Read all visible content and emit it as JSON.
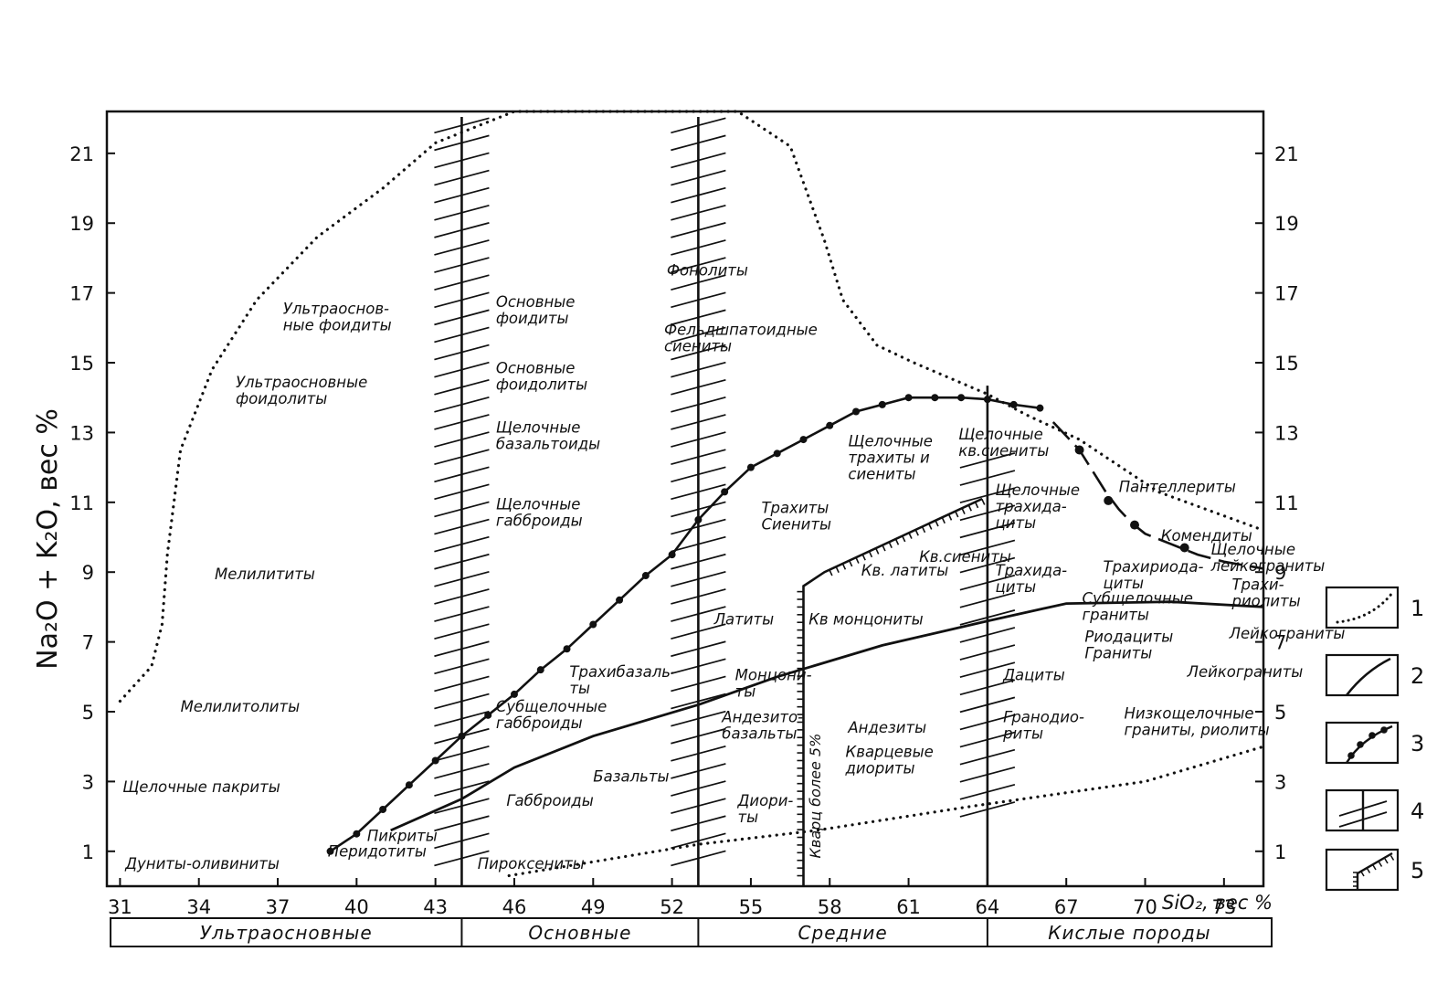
{
  "chart_data": {
    "type": "line",
    "title": "",
    "xlabel": "SiO₂, вес %",
    "ylabel": "Na₂O + K₂O, вес %",
    "xlim": [
      30.5,
      74.5
    ],
    "ylim": [
      0,
      22.2
    ],
    "x_ticks": [
      "31",
      "34",
      "37",
      "40",
      "43",
      "46",
      "49",
      "52",
      "55",
      "58",
      "61",
      "64",
      "67",
      "70",
      "73"
    ],
    "y_ticks_left": [
      "1",
      "3",
      "5",
      "7",
      "9",
      "11",
      "13",
      "15",
      "17",
      "19",
      "21"
    ],
    "y_ticks_right": [
      "1",
      "3",
      "5",
      "7",
      "9",
      "11",
      "13",
      "15",
      "17",
      "19",
      "21"
    ],
    "groups": [
      {
        "label": "Ультраосновные",
        "from": 30.5,
        "to": 44
      },
      {
        "label": "Основные",
        "from": 44,
        "to": 53
      },
      {
        "label": "Средние",
        "from": 53,
        "to": 64
      },
      {
        "label": "Кислые породы",
        "from": 64,
        "to": 74.5
      }
    ],
    "curves": {
      "dotted_upper": [
        [
          31,
          5.3
        ],
        [
          32.2,
          6.3
        ],
        [
          32.6,
          7.5
        ],
        [
          32.8,
          9.5
        ],
        [
          33.3,
          12.5
        ],
        [
          34.5,
          14.8
        ],
        [
          36.2,
          16.8
        ],
        [
          38.5,
          18.6
        ],
        [
          41,
          20
        ],
        [
          43,
          21.3
        ],
        [
          46,
          22.2
        ],
        [
          54.5,
          22.2
        ],
        [
          56.5,
          21.2
        ],
        [
          57.8,
          18.5
        ],
        [
          58.5,
          16.8
        ],
        [
          59.8,
          15.5
        ],
        [
          61.2,
          15
        ],
        [
          64,
          14.1
        ],
        [
          65.5,
          13.5
        ],
        [
          67.5,
          12.8
        ],
        [
          70.5,
          11.3
        ],
        [
          74.5,
          10.2
        ]
      ],
      "dotted_lower": [
        [
          45.8,
          0.3
        ],
        [
          49,
          0.7
        ],
        [
          53,
          1.2
        ],
        [
          57.5,
          1.6
        ],
        [
          63.5,
          2.3
        ],
        [
          70,
          3
        ],
        [
          74.5,
          4
        ]
      ],
      "alkaline_boundary_dotted": [
        [
          39,
          1
        ],
        [
          40,
          1.5
        ],
        [
          41,
          2.2
        ],
        [
          42,
          2.9
        ],
        [
          43,
          3.6
        ],
        [
          44,
          4.3
        ],
        [
          45,
          4.9
        ],
        [
          46,
          5.5
        ],
        [
          47,
          6.2
        ],
        [
          48,
          6.8
        ],
        [
          49,
          7.5
        ],
        [
          50,
          8.2
        ],
        [
          51,
          8.9
        ],
        [
          52,
          9.5
        ],
        [
          53,
          10.5
        ],
        [
          54,
          11.3
        ],
        [
          55,
          12
        ],
        [
          56,
          12.4
        ],
        [
          57,
          12.8
        ],
        [
          58,
          13.2
        ],
        [
          59,
          13.6
        ],
        [
          60,
          13.8
        ],
        [
          61,
          14
        ],
        [
          62,
          14
        ],
        [
          63,
          14
        ],
        [
          64,
          13.95
        ],
        [
          65,
          13.8
        ],
        [
          66,
          13.7
        ]
      ],
      "dashdot_tail": [
        [
          66.5,
          13.3
        ],
        [
          67.5,
          12.5
        ],
        [
          68.5,
          11.3
        ],
        [
          69,
          10.8
        ],
        [
          69.5,
          10.4
        ],
        [
          70,
          10.1
        ],
        [
          71,
          9.8
        ],
        [
          72,
          9.5
        ],
        [
          73,
          9.3
        ],
        [
          74.5,
          9.1
        ]
      ],
      "subalkaline_solid": [
        [
          41.3,
          1.6
        ],
        [
          44,
          2.5
        ],
        [
          46,
          3.4
        ],
        [
          49,
          4.3
        ],
        [
          53,
          5.2
        ],
        [
          56,
          6
        ],
        [
          60,
          6.9
        ],
        [
          64,
          7.6
        ],
        [
          67,
          8.1
        ],
        [
          71,
          8.15
        ],
        [
          74.5,
          8
        ]
      ],
      "quartz_5_line": [
        [
          57,
          0
        ],
        [
          57,
          8.6
        ],
        [
          57.8,
          9
        ],
        [
          63.8,
          11.1
        ]
      ],
      "hatched_verticals": [
        44,
        53,
        64
      ],
      "hatched_vertical_ranges": [
        [
          0,
          22.2
        ],
        [
          0,
          22.2
        ],
        [
          0,
          14.5
        ]
      ]
    },
    "fields": [
      {
        "lines": [
          "Ультраоснов-",
          "ные фоидиты"
        ],
        "x": 37.2,
        "y": 16.4
      },
      {
        "lines": [
          "Ультраосновные",
          "фоидолиты"
        ],
        "x": 35.4,
        "y": 14.3
      },
      {
        "lines": [
          "Мелилититы"
        ],
        "x": 34.6,
        "y": 8.8
      },
      {
        "lines": [
          "Мелилитолиты"
        ],
        "x": 33.3,
        "y": 5.0
      },
      {
        "lines": [
          "Щелочные пакриты"
        ],
        "x": 31.1,
        "y": 2.7
      },
      {
        "lines": [
          "Дуниты-оливиниты"
        ],
        "x": 31.2,
        "y": 0.5
      },
      {
        "lines": [
          "Пикриты"
        ],
        "x": 40.4,
        "y": 1.3
      },
      {
        "lines": [
          "Перидотиты"
        ],
        "x": 38.9,
        "y": 0.85
      },
      {
        "lines": [
          "Основные",
          "фоидиты"
        ],
        "x": 45.3,
        "y": 16.6
      },
      {
        "lines": [
          "Основные",
          "фоидолиты"
        ],
        "x": 45.3,
        "y": 14.7
      },
      {
        "lines": [
          "Щелочные",
          "базальтоиды"
        ],
        "x": 45.3,
        "y": 13.0
      },
      {
        "lines": [
          "Щелочные",
          "габброиды"
        ],
        "x": 45.3,
        "y": 10.8
      },
      {
        "lines": [
          "Трахибазаль-",
          "ты"
        ],
        "x": 48.1,
        "y": 6.0
      },
      {
        "lines": [
          "Субщелочные",
          "габброиды"
        ],
        "x": 45.3,
        "y": 5.0
      },
      {
        "lines": [
          "Базальты"
        ],
        "x": 49,
        "y": 3.0
      },
      {
        "lines": [
          "Габброиды"
        ],
        "x": 45.7,
        "y": 2.3
      },
      {
        "lines": [
          "Пироксениты"
        ],
        "x": 44.6,
        "y": 0.5
      },
      {
        "lines": [
          "Фонолиты"
        ],
        "x": 51.8,
        "y": 17.5
      },
      {
        "lines": [
          "Фельдшпатоидные",
          "сиениты"
        ],
        "x": 51.7,
        "y": 15.8
      },
      {
        "lines": [
          "Трахиты",
          "Сиениты"
        ],
        "x": 55.4,
        "y": 10.7
      },
      {
        "lines": [
          "Щелочные",
          "трахиты и",
          "сиениты"
        ],
        "x": 58.7,
        "y": 12.6
      },
      {
        "lines": [
          "Латиты"
        ],
        "x": 53.6,
        "y": 7.5
      },
      {
        "lines": [
          "Монцони-",
          "ты"
        ],
        "x": 54.4,
        "y": 5.9
      },
      {
        "lines": [
          "Андезито-",
          "базальты"
        ],
        "x": 53.9,
        "y": 4.7
      },
      {
        "lines": [
          "Диори-",
          "ты"
        ],
        "x": 54.5,
        "y": 2.3
      },
      {
        "lines": [
          "Кв монцониты"
        ],
        "x": 57.2,
        "y": 7.5
      },
      {
        "lines": [
          "Кв. латиты"
        ],
        "x": 59.2,
        "y": 8.9
      },
      {
        "lines": [
          "Андезиты"
        ],
        "x": 58.7,
        "y": 4.4
      },
      {
        "lines": [
          "Кварцевые",
          "диориты"
        ],
        "x": 58.6,
        "y": 3.7
      },
      {
        "lines": [
          "Кв.сиениты"
        ],
        "x": 61.4,
        "y": 9.3
      },
      {
        "lines": [
          "Щелочные",
          "кв.сиениты"
        ],
        "x": 62.9,
        "y": 12.8
      },
      {
        "lines": [
          "Щелочные",
          "трахида-",
          "циты"
        ],
        "x": 64.3,
        "y": 11.2
      },
      {
        "lines": [
          "Трахида-",
          "циты"
        ],
        "x": 64.3,
        "y": 8.9
      },
      {
        "lines": [
          "Дациты"
        ],
        "x": 64.6,
        "y": 5.9
      },
      {
        "lines": [
          "Гранодио-",
          "риты"
        ],
        "x": 64.6,
        "y": 4.7
      },
      {
        "lines": [
          "Пантеллериты"
        ],
        "x": 69,
        "y": 11.3
      },
      {
        "lines": [
          "Комендиты"
        ],
        "x": 70.6,
        "y": 9.9
      },
      {
        "lines": [
          "Щелочные",
          "лейкограниты"
        ],
        "x": 72.5,
        "y": 9.5
      },
      {
        "lines": [
          "Трахириода-",
          "циты"
        ],
        "x": 68.4,
        "y": 9.0
      },
      {
        "lines": [
          "Субщелочные",
          "граниты"
        ],
        "x": 67.6,
        "y": 8.1
      },
      {
        "lines": [
          "Риодациты",
          "Граниты"
        ],
        "x": 67.7,
        "y": 7.0
      },
      {
        "lines": [
          "Трахи-",
          "риолиты"
        ],
        "x": 73.3,
        "y": 8.5
      },
      {
        "lines": [
          "Лейкограниты"
        ],
        "x": 73.2,
        "y": 7.1
      },
      {
        "lines": [
          "Лейкограниты"
        ],
        "x": 71.6,
        "y": 6.0
      },
      {
        "lines": [
          "Низкощелочные",
          "граниты, риолиты"
        ],
        "x": 69.2,
        "y": 4.8
      }
    ],
    "rotated_label": {
      "text": "Кварц более 5%",
      "x": 57.65,
      "y": 0.8
    },
    "legend": [
      {
        "num": "1",
        "kind": "dotted"
      },
      {
        "num": "2",
        "kind": "solid"
      },
      {
        "num": "3",
        "kind": "beaded"
      },
      {
        "num": "4",
        "kind": "hatched"
      },
      {
        "num": "5",
        "kind": "ticked"
      }
    ]
  }
}
